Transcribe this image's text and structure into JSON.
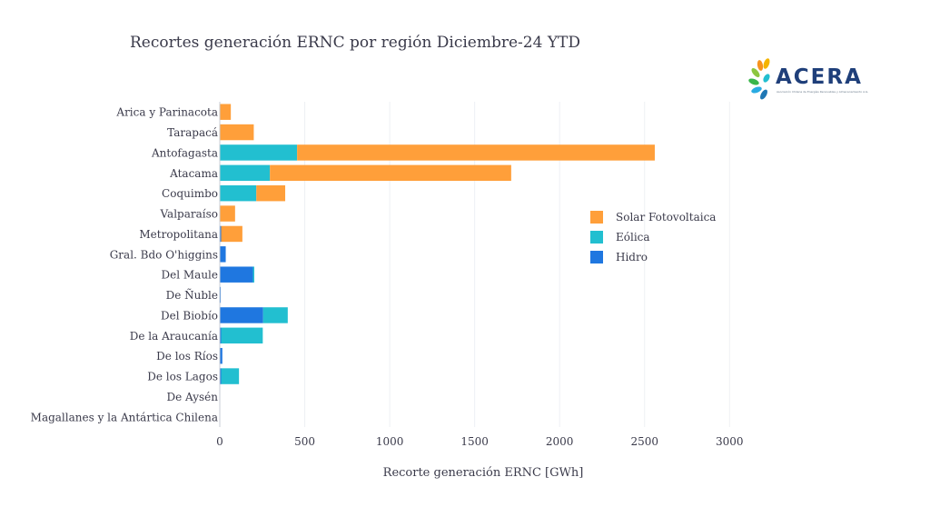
{
  "colors": {
    "solar": "#ff9f3a",
    "eolica": "#22bfd0",
    "hidro": "#1f77e0",
    "grid": "#eef0f4",
    "text": "#3a3a4a"
  },
  "logo": {
    "text": "ACERA",
    "tagline": "Asociación Chilena de Energías Renovables y Almacenamiento A.G."
  },
  "chart_data": {
    "type": "bar",
    "orientation": "horizontal",
    "barmode": "stack",
    "title": "Recortes generación ERNC por región Diciembre-24 YTD",
    "xlabel": "Recorte generación ERNC [GWh]",
    "ylabel": "",
    "xlim": [
      0,
      3100
    ],
    "xticks": [
      0,
      500,
      1000,
      1500,
      2000,
      2500,
      3000
    ],
    "grid": true,
    "legend_position": "right",
    "categories": [
      "Arica y Parinacota",
      "Tarapacá",
      "Antofagasta",
      "Atacama",
      "Coquimbo",
      "Valparaíso",
      "Metropolitana",
      "Gral. Bdo O'higgins",
      "Del Maule",
      "De Ñuble",
      "Del Biobío",
      "De la Araucanía",
      "De los Ríos",
      "De los Lagos",
      "De Aysén",
      "Magallanes y la Antártica Chilena"
    ],
    "series": [
      {
        "name": "Hidro",
        "color_key": "hidro",
        "values": [
          0,
          0,
          0,
          0,
          0,
          0,
          8,
          35,
          195,
          4,
          255,
          8,
          15,
          8,
          0,
          0
        ]
      },
      {
        "name": "Eólica",
        "color_key": "eolica",
        "values": [
          0,
          0,
          455,
          295,
          215,
          0,
          0,
          0,
          8,
          0,
          145,
          245,
          0,
          105,
          0,
          0
        ]
      },
      {
        "name": "Solar Fotovoltaica",
        "color_key": "solar",
        "values": [
          65,
          200,
          2105,
          1420,
          170,
          90,
          125,
          0,
          0,
          0,
          0,
          0,
          0,
          0,
          0,
          0
        ]
      }
    ],
    "legend_order": [
      "Solar Fotovoltaica",
      "Eólica",
      "Hidro"
    ]
  }
}
